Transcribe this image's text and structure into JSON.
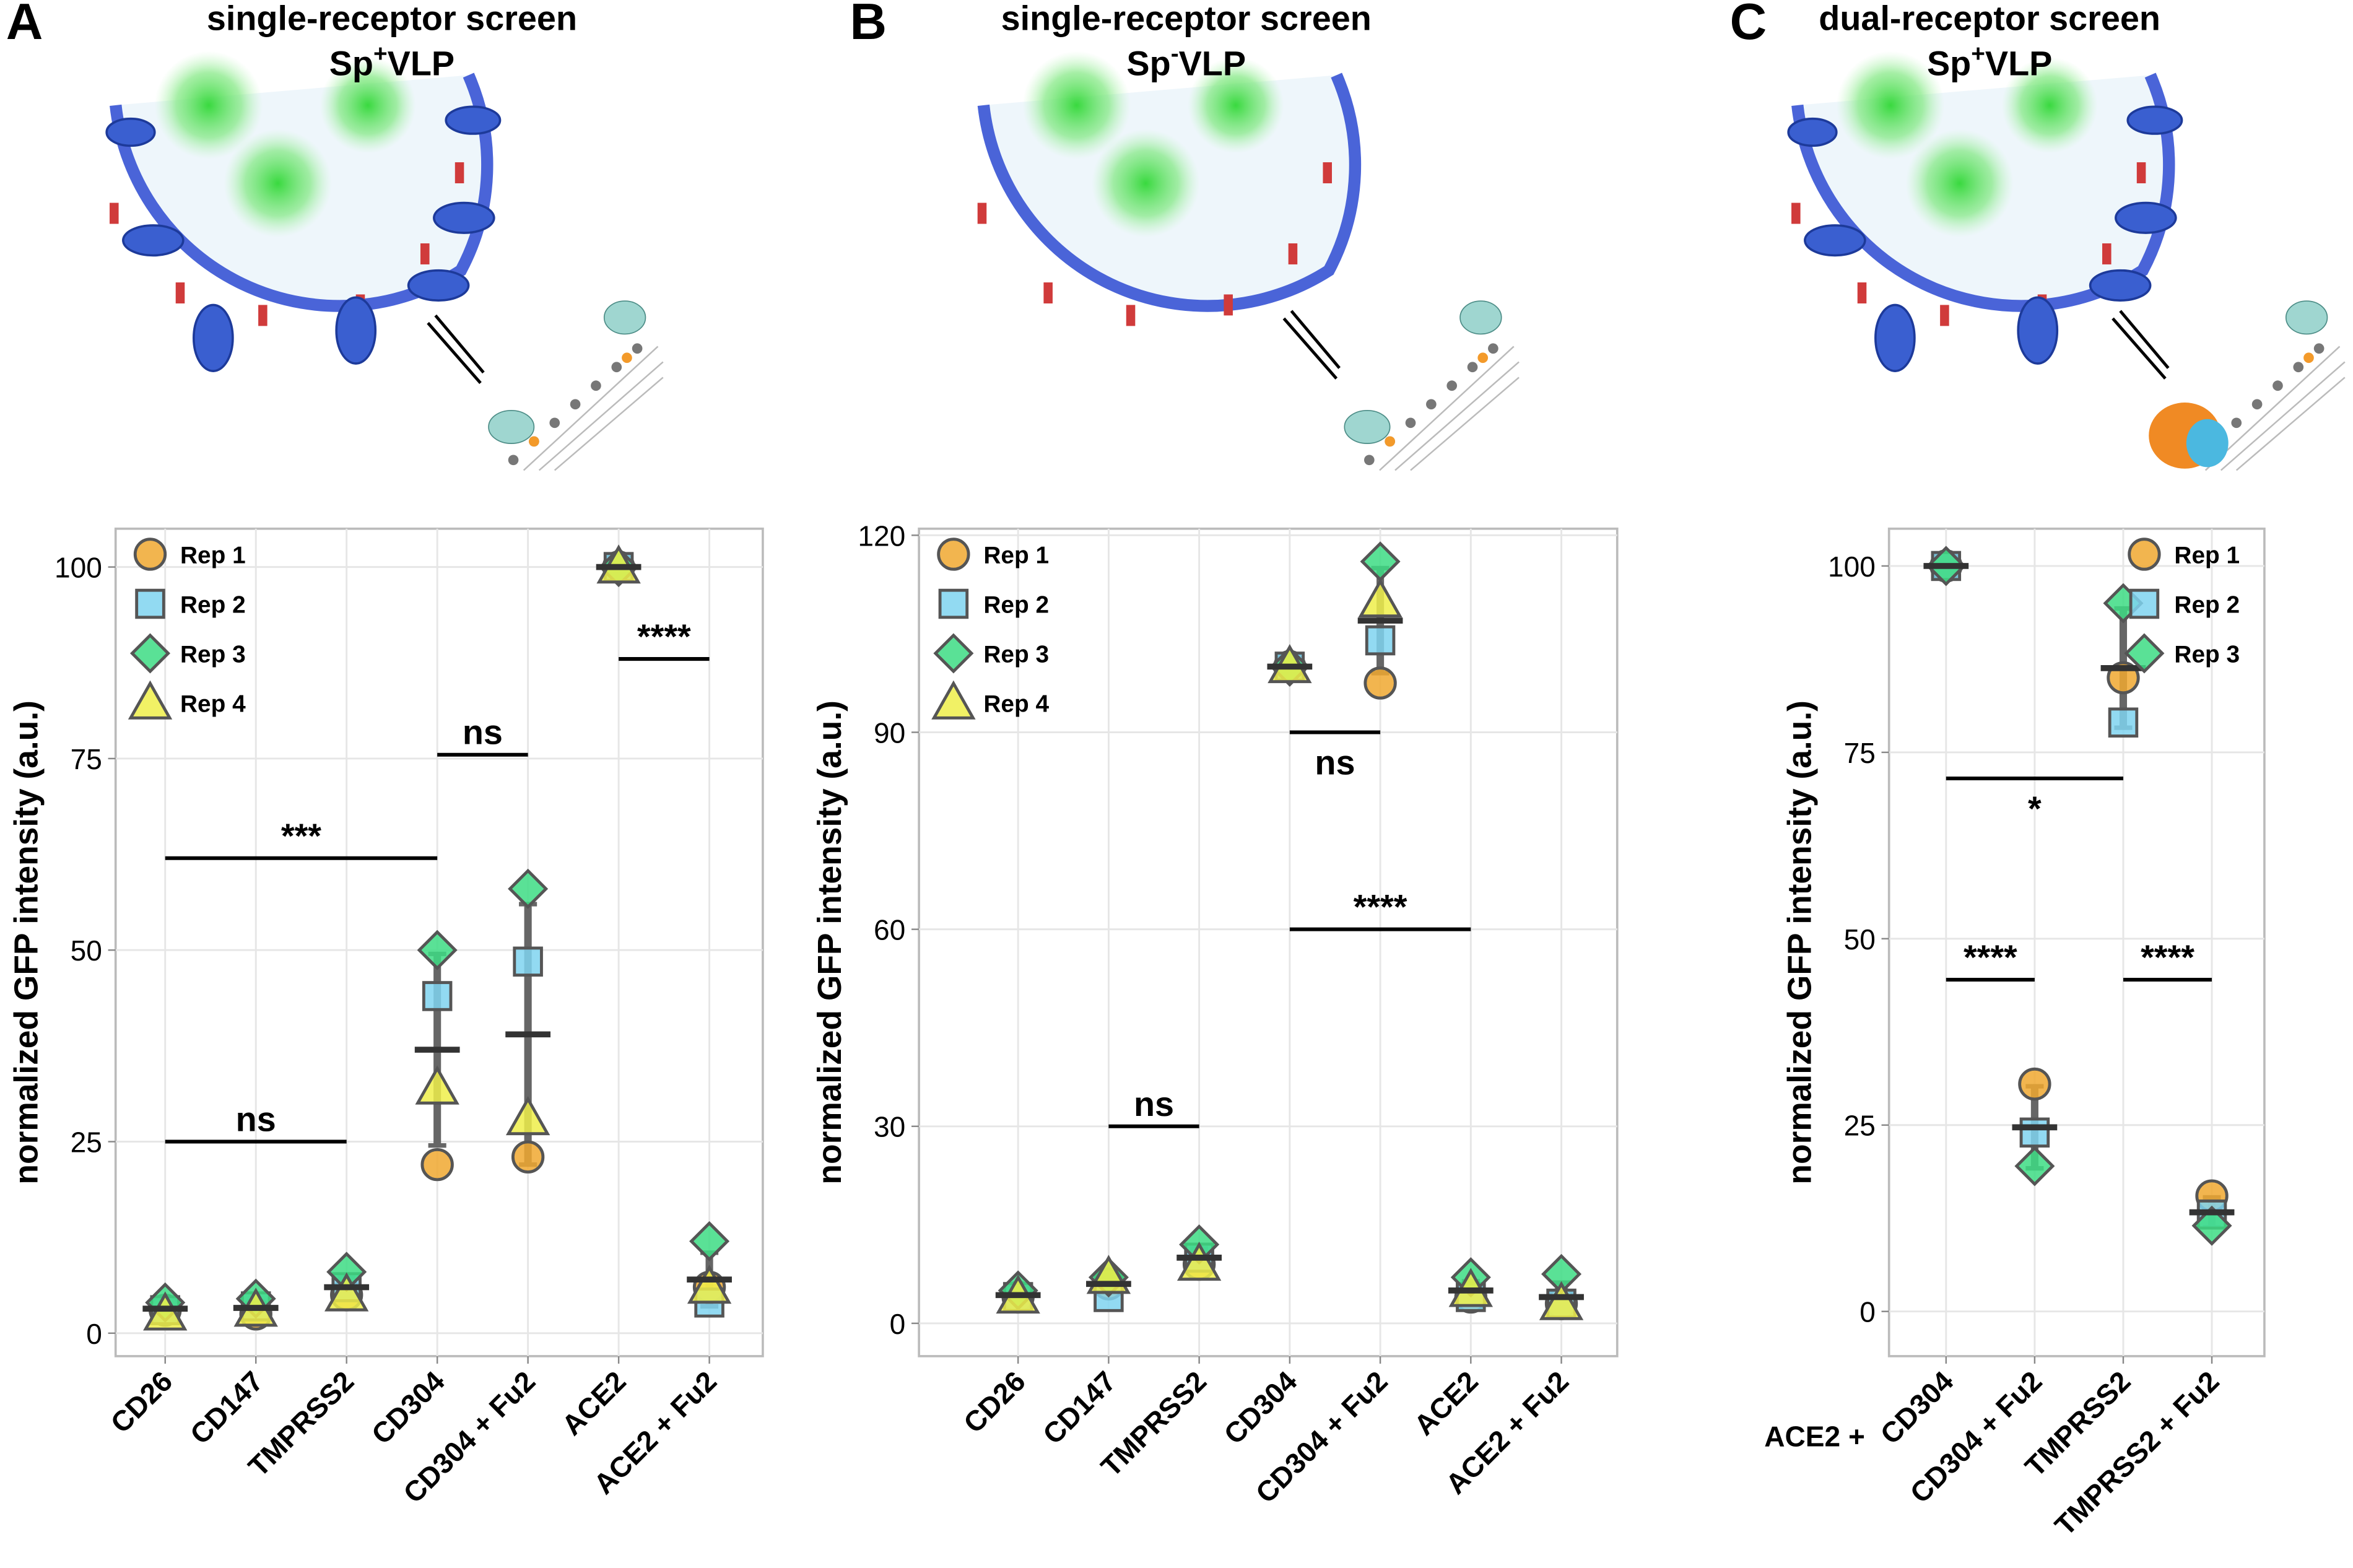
{
  "chart_data": [
    {
      "type": "scatter",
      "panel": "A",
      "title": "single-receptor screen",
      "subtitle": "Sp",
      "subtitle_sup": "+",
      "subtitle_rest": "VLP",
      "y_label": "normalized GFP intensity (a.u.)",
      "categories": [
        "CD26",
        "CD147",
        "TMPRSS2",
        "CD304",
        "CD304 + Fu2",
        "ACE2",
        "ACE2 + Fu2"
      ],
      "series": [
        {
          "name": "Rep 1",
          "color": "#f0a830",
          "marker": "circle",
          "values": [
            3,
            2.5,
            5,
            22,
            23,
            100,
            6
          ]
        },
        {
          "name": "Rep 2",
          "color": "#7fd4f0",
          "marker": "square",
          "values": [
            3,
            3.5,
            6,
            44,
            48.5,
            100,
            4
          ]
        },
        {
          "name": "Rep 3",
          "color": "#3ddc84",
          "marker": "diamond",
          "values": [
            4,
            4.5,
            8,
            50,
            58,
            100,
            12
          ]
        },
        {
          "name": "Rep 4",
          "color": "#eeee4a",
          "marker": "triangle",
          "values": [
            2.5,
            3,
            5,
            32,
            28,
            100,
            6
          ]
        }
      ],
      "mean": [
        3.2,
        3.3,
        6,
        37,
        39,
        100,
        7
      ],
      "sd": [
        0.7,
        0.8,
        1.3,
        12.5,
        17,
        0,
        3.5
      ],
      "annotations": [
        {
          "text": "ns",
          "from": 0,
          "to": 2,
          "y": 25,
          "text_position": "above"
        },
        {
          "text": "***",
          "from": 0,
          "to": 3,
          "y": 62,
          "text_position": "above"
        },
        {
          "text": "ns",
          "from": 3,
          "to": 4,
          "y": 75.5,
          "text_position": "above"
        },
        {
          "text": "****",
          "from": 5,
          "to": 6,
          "y": 88,
          "text_position": "above"
        }
      ],
      "ylim": [
        -3,
        105
      ],
      "yticks": [
        0,
        25,
        50,
        75,
        100
      ],
      "grid": true,
      "legend": "upper left"
    },
    {
      "type": "scatter",
      "panel": "B",
      "title": "single-receptor screen",
      "subtitle": "Sp",
      "subtitle_sup": "-",
      "subtitle_rest": "VLP",
      "y_label": "normalized GFP intensity (a.u.)",
      "categories": [
        "CD26",
        "CD147",
        "TMPRSS2",
        "CD304",
        "CD304 + Fu2",
        "ACE2",
        "ACE2 + Fu2"
      ],
      "series": [
        {
          "name": "Rep 1",
          "color": "#f0a830",
          "marker": "circle",
          "values": [
            4,
            6,
            9,
            100,
            97.5,
            4,
            3
          ]
        },
        {
          "name": "Rep 2",
          "color": "#7fd4f0",
          "marker": "square",
          "values": [
            4,
            4,
            10,
            100,
            104,
            4,
            3
          ]
        },
        {
          "name": "Rep 3",
          "color": "#3ddc84",
          "marker": "diamond",
          "values": [
            5,
            7,
            12,
            100,
            116,
            7,
            7.5
          ]
        },
        {
          "name": "Rep 4",
          "color": "#eeee4a",
          "marker": "triangle",
          "values": [
            4,
            7,
            9,
            100,
            110,
            5,
            3
          ]
        }
      ],
      "mean": [
        4.3,
        6,
        10,
        100,
        107,
        5,
        4
      ],
      "sd": [
        0.5,
        1.3,
        1.4,
        0,
        8,
        1.4,
        2.2
      ],
      "annotations": [
        {
          "text": "ns",
          "from": 1,
          "to": 2,
          "y": 30,
          "text_position": "above"
        },
        {
          "text": "ns",
          "from": 3,
          "to": 4,
          "y": 90,
          "text_position": "below"
        },
        {
          "text": "****",
          "from": 3,
          "to": 5,
          "y": 60,
          "text_position": "above"
        }
      ],
      "ylim": [
        -5,
        121
      ],
      "yticks": [
        0,
        30,
        60,
        90,
        120
      ],
      "grid": true,
      "legend": "upper left"
    },
    {
      "type": "scatter",
      "panel": "C",
      "title": "dual-receptor screen",
      "subtitle": "Sp",
      "subtitle_sup": "+",
      "subtitle_rest": "VLP",
      "y_label": "normalized GFP intensity (a.u.)",
      "x_prefix": "ACE2 +",
      "categories": [
        "CD304",
        "CD304 + Fu2",
        "TMPRSS2",
        "TMPRSS2 + Fu2"
      ],
      "series": [
        {
          "name": "Rep 1",
          "color": "#f0a830",
          "marker": "circle",
          "values": [
            100,
            30.5,
            85,
            15.5
          ]
        },
        {
          "name": "Rep 2",
          "color": "#7fd4f0",
          "marker": "square",
          "values": [
            100,
            24,
            79,
            13
          ]
        },
        {
          "name": "Rep 3",
          "color": "#3ddc84",
          "marker": "diamond",
          "values": [
            100,
            19.5,
            95,
            11.5
          ]
        }
      ],
      "mean": [
        100,
        24.7,
        86.3,
        13.3
      ],
      "sd": [
        0,
        5.5,
        8,
        2
      ],
      "annotations": [
        {
          "text": "*",
          "from": 0,
          "to": 2,
          "y": 71.5,
          "text_position": "below"
        },
        {
          "text": "****",
          "from": 0,
          "to": 1,
          "y": 44.5,
          "text_position": "above"
        },
        {
          "text": "****",
          "from": 2,
          "to": 3,
          "y": 44.5,
          "text_position": "above"
        }
      ],
      "ylim": [
        -6,
        105
      ],
      "yticks": [
        0,
        25,
        50,
        75,
        100
      ],
      "grid": true,
      "legend": "upper right"
    }
  ]
}
